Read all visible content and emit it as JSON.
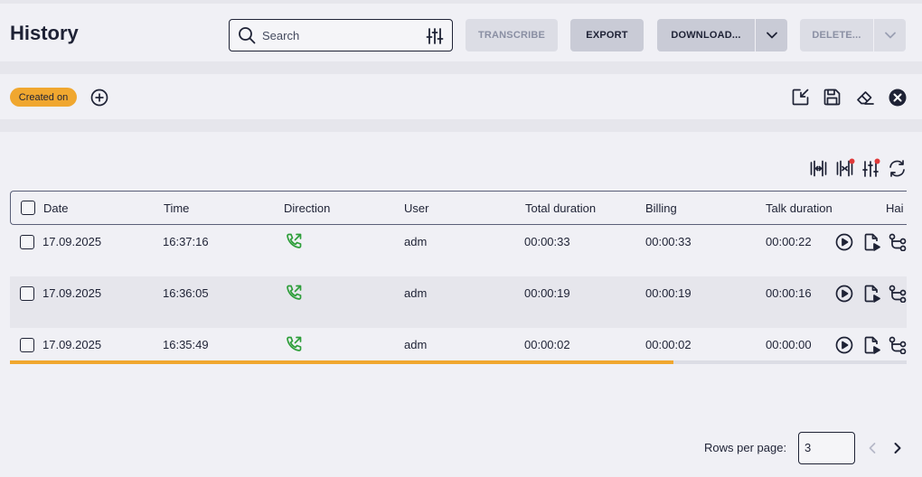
{
  "header": {
    "title": "History",
    "search_placeholder": "Search",
    "buttons": {
      "transcribe": "TRANSCRIBE",
      "export": "EXPORT",
      "download": "DOWNLOAD...",
      "delete": "DELETE..."
    }
  },
  "filters": {
    "chip_label": "Created on"
  },
  "table": {
    "columns": [
      "Date",
      "Time",
      "Direction",
      "User",
      "Total duration",
      "Billing",
      "Talk duration",
      "Hai"
    ],
    "rows": [
      {
        "date": "17.09.2025",
        "time": "16:37:16",
        "direction": "outgoing-call-icon",
        "user": "adm",
        "total": "00:00:33",
        "billing": "00:00:33",
        "talk": "00:00:22"
      },
      {
        "date": "17.09.2025",
        "time": "16:36:05",
        "direction": "outgoing-call-icon",
        "user": "adm",
        "total": "00:00:19",
        "billing": "00:00:19",
        "talk": "00:00:16"
      },
      {
        "date": "17.09.2025",
        "time": "16:35:49",
        "direction": "outgoing-call-icon",
        "user": "adm",
        "total": "00:00:02",
        "billing": "00:00:02",
        "talk": "00:00:00"
      }
    ]
  },
  "scroll_progress": 0.74,
  "pagination": {
    "rows_per_page_label": "Rows per page:",
    "rows_per_page_value": "3"
  },
  "colors": {
    "accent": "#f0a72f",
    "call_green": "#2e9e3a",
    "text": "#1e2235",
    "badge_red": "#e03a3a"
  }
}
